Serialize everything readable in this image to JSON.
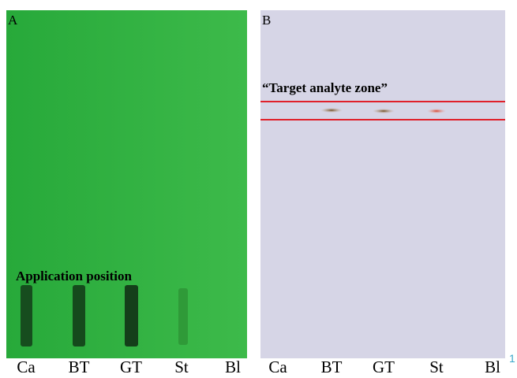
{
  "panels": [
    {
      "label": "A",
      "annotation": "Application position",
      "lanes": [
        "Ca",
        "BT",
        "GT",
        "St",
        "Bl"
      ]
    },
    {
      "label": "B",
      "annotation": "“Target analyte zone”",
      "lanes": [
        "Ca",
        "BT",
        "GT",
        "St",
        "Bl"
      ]
    }
  ],
  "page_number": "1"
}
